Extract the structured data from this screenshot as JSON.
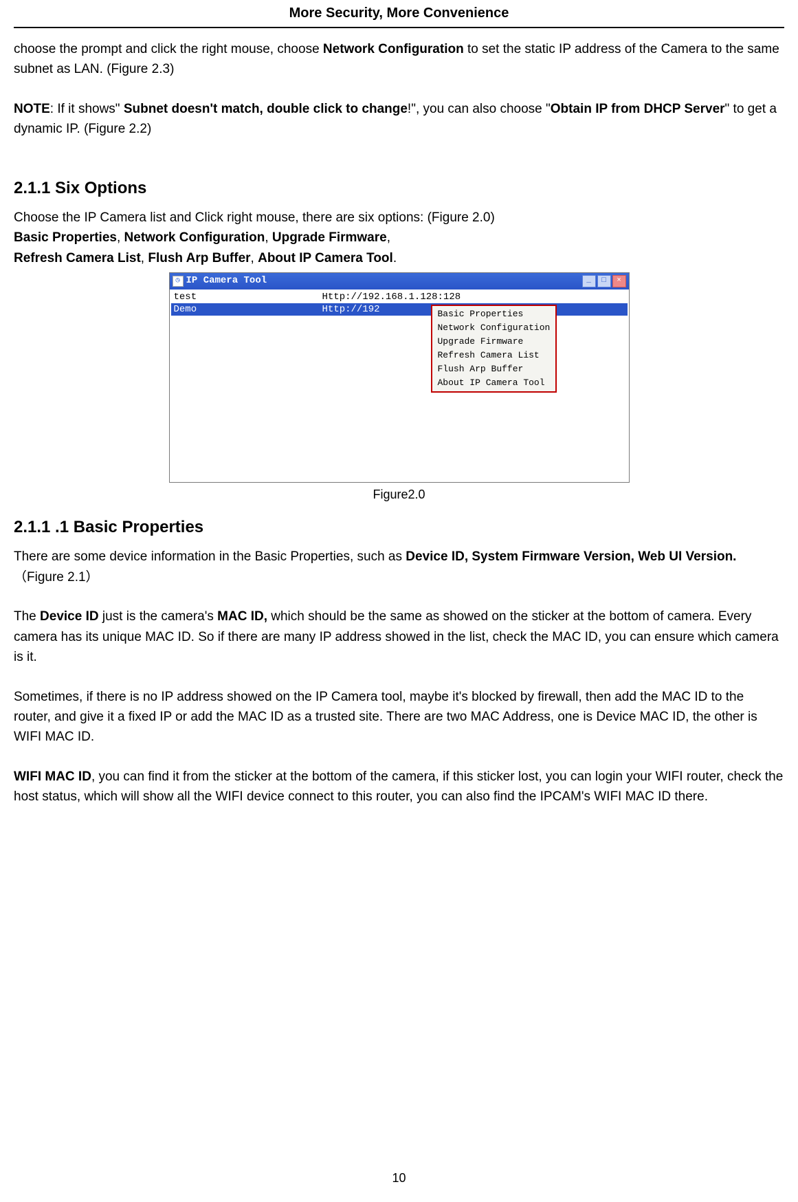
{
  "header": {
    "title": "More Security, More Convenience"
  },
  "intro": {
    "p1a": "choose the prompt and click the right mouse, choose ",
    "p1b": "Network Configuration",
    "p1c": " to set the static IP address of the Camera to the same subnet as LAN. (Figure 2.3)",
    "noteLabel": "NOTE",
    "noteA": ": If it shows\" ",
    "noteBold1": "Subnet doesn't match, double click to change",
    "noteB": "!\", you can also choose \"",
    "noteBold2": "Obtain IP from DHCP Server",
    "noteC": "\" to get a dynamic IP. (Figure 2.2)"
  },
  "section211": {
    "heading": "2.1.1 Six Options",
    "p1": "Choose the IP Camera list and Click right mouse, there are six options: (Figure 2.0)",
    "b1": "Basic Properties",
    "c1": ", ",
    "b2": "Network Configuration",
    "c2": ", ",
    "b3": "Upgrade Firmware",
    "c3": ",",
    "b4": "Refresh Camera List",
    "c4": ", ",
    "b5": "Flush Arp Buffer",
    "c5": ", ",
    "b6": "About IP Camera Tool",
    "c6": "."
  },
  "ipcamWindow": {
    "title": "IP Camera Tool",
    "row1": {
      "name": "test",
      "url": "Http://192.168.1.128:128"
    },
    "row2": {
      "name": "Demo",
      "url": "Http://192"
    },
    "menu": {
      "i1": "Basic Properties",
      "i2": "Network Configuration",
      "i3": "Upgrade Firmware",
      "i4": "Refresh Camera List",
      "i5": "Flush Arp Buffer",
      "i6": "About IP Camera Tool"
    },
    "btnMin": "_",
    "btnMax": "□",
    "btnClose": "×"
  },
  "figureCaption": "Figure2.0",
  "section2111": {
    "heading": "2.1.1 .1 Basic Properties",
    "p1a": "There are some device information in the Basic Properties, such as ",
    "p1b": "Device ID, System Firmware Version, Web UI Version.",
    "p1c": "（Figure 2.1）",
    "p2a": "The ",
    "p2b": "Device ID",
    "p2c": " just is the camera's ",
    "p2d": "MAC ID,",
    "p2e": " which should be the same as showed on the sticker at the bottom of camera. Every camera has its unique MAC ID. So if there are many IP address showed in the list, check the MAC ID, you can ensure which camera is it.",
    "p3": "Sometimes, if there is no IP address showed on the IP Camera tool, maybe it's blocked by firewall, then add the MAC ID to the router, and give it a fixed IP or add the MAC ID as a trusted site. There are two MAC Address, one is Device MAC ID, the other is WIFI MAC ID.",
    "p4a": "WIFI MAC ID",
    "p4b": ", you can find it from the sticker at the bottom of the camera, if this sticker lost, you can login your WIFI router, check the host status, which will show all the WIFI device connect to this router, you can also find the IPCAM's WIFI MAC ID there."
  },
  "pageNumber": "10"
}
